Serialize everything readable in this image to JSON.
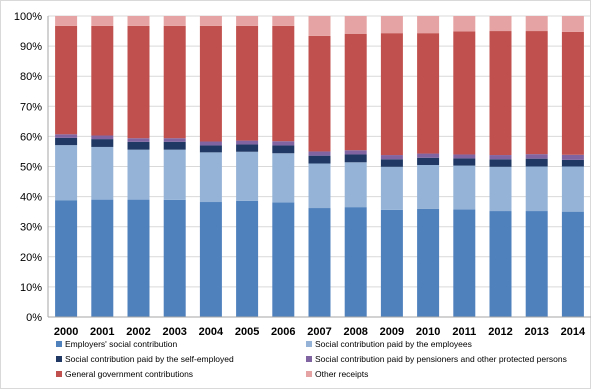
{
  "chart_data": {
    "type": "bar",
    "stacked": true,
    "categories": [
      "2000",
      "2001",
      "2002",
      "2003",
      "2004",
      "2005",
      "2006",
      "2007",
      "2008",
      "2009",
      "2010",
      "2011",
      "2012",
      "2013",
      "2014"
    ],
    "ylim": [
      0,
      100
    ],
    "yticks": [
      "0%",
      "10%",
      "20%",
      "30%",
      "40%",
      "50%",
      "60%",
      "70%",
      "80%",
      "90%",
      "100%"
    ],
    "grid": true,
    "legend_position": "bottom",
    "series": [
      {
        "name": "Employers' social contribution",
        "color": "#4f81bd",
        "values": [
          38.8,
          39.0,
          39.0,
          38.9,
          38.2,
          38.6,
          38.1,
          36.2,
          36.5,
          35.6,
          35.9,
          35.7,
          35.2,
          35.2,
          35.0
        ]
      },
      {
        "name": "Social contribution paid by the employees",
        "color": "#95b3d7",
        "values": [
          18.3,
          17.5,
          16.6,
          16.7,
          16.5,
          16.3,
          16.3,
          14.8,
          14.9,
          14.3,
          14.6,
          14.6,
          14.7,
          14.8,
          15.0
        ]
      },
      {
        "name": "Social contribution paid by the self-employed",
        "color": "#1f3864",
        "values": [
          2.4,
          2.6,
          2.6,
          2.6,
          2.3,
          2.4,
          2.6,
          2.6,
          2.6,
          2.5,
          2.4,
          2.4,
          2.5,
          2.6,
          2.2
        ]
      },
      {
        "name": "Social contribution paid by pensioners and other protected persons",
        "color": "#8064a2",
        "values": [
          1.2,
          1.2,
          1.2,
          1.2,
          1.3,
          1.3,
          1.4,
          1.4,
          1.4,
          1.4,
          1.4,
          1.3,
          1.4,
          1.5,
          1.7
        ]
      },
      {
        "name": "General government contributions",
        "color": "#c0504d",
        "values": [
          36.0,
          36.4,
          37.3,
          37.3,
          38.4,
          38.1,
          38.3,
          38.4,
          38.7,
          40.5,
          40.0,
          40.9,
          41.2,
          40.9,
          40.8
        ]
      },
      {
        "name": "Other receipts",
        "color": "#e6a3a3",
        "values": [
          3.3,
          3.3,
          3.3,
          3.3,
          3.3,
          3.3,
          3.3,
          6.6,
          5.9,
          5.7,
          5.7,
          5.1,
          5.0,
          5.0,
          5.3
        ]
      }
    ]
  }
}
